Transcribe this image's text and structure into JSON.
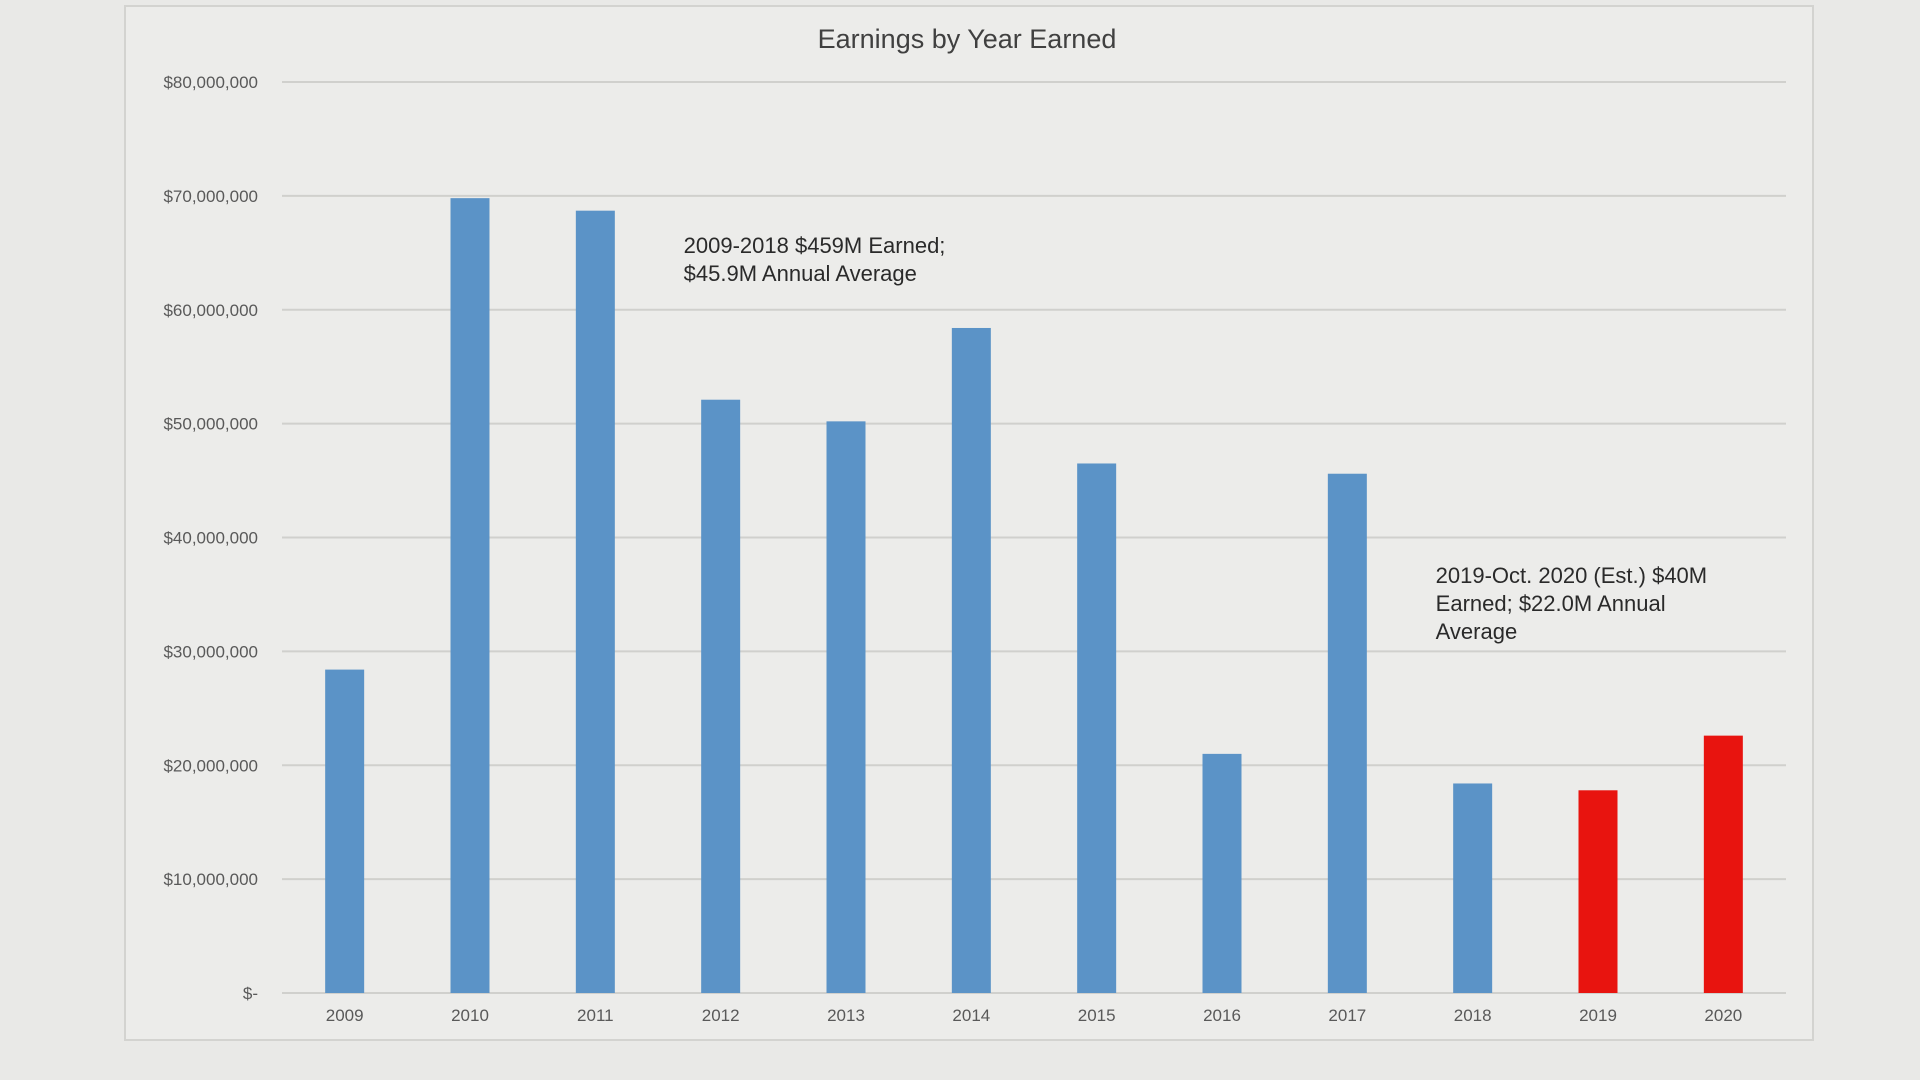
{
  "chart_data": {
    "type": "bar",
    "title": "Earnings by Year Earned",
    "categories": [
      "2009",
      "2010",
      "2011",
      "2012",
      "2013",
      "2014",
      "2015",
      "2016",
      "2017",
      "2018",
      "2019",
      "2020"
    ],
    "values": [
      28400000,
      69800000,
      68700000,
      52100000,
      50200000,
      58400000,
      46500000,
      21000000,
      45600000,
      18400000,
      17800000,
      22600000
    ],
    "bar_colors": [
      "#5b93c7",
      "#5b93c7",
      "#5b93c7",
      "#5b93c7",
      "#5b93c7",
      "#5b93c7",
      "#5b93c7",
      "#5b93c7",
      "#5b93c7",
      "#5b93c7",
      "#e8140f",
      "#e8140f"
    ],
    "ylim": [
      0,
      80000000
    ],
    "y_ticks": [
      0,
      10000000,
      20000000,
      30000000,
      40000000,
      50000000,
      60000000,
      70000000,
      80000000
    ],
    "y_tick_labels": [
      "$-",
      "$10,000,000",
      "$20,000,000",
      "$30,000,000",
      "$40,000,000",
      "$50,000,000",
      "$60,000,000",
      "$70,000,000",
      "$80,000,000"
    ],
    "xlabel": "",
    "ylabel": "",
    "grid": true,
    "annotations": [
      {
        "lines": [
          "2009-2018  $459M  Earned;",
          "$45.9M  Annual Average"
        ],
        "anchor_category": "2012",
        "anchor_value": 65000000
      },
      {
        "lines": [
          "2019-Oct. 2020  (Est.) $40M",
          "Earned; $22.0M  Annual",
          "Average"
        ],
        "anchor_category": "2018",
        "anchor_value": 36000000
      }
    ],
    "colors": {
      "blue": "#5b93c7",
      "red": "#e8140f",
      "gridline": "#d0d0cd",
      "axis_text": "#595959",
      "title_text": "#404040",
      "annotation_text": "#2a2a2a"
    }
  }
}
